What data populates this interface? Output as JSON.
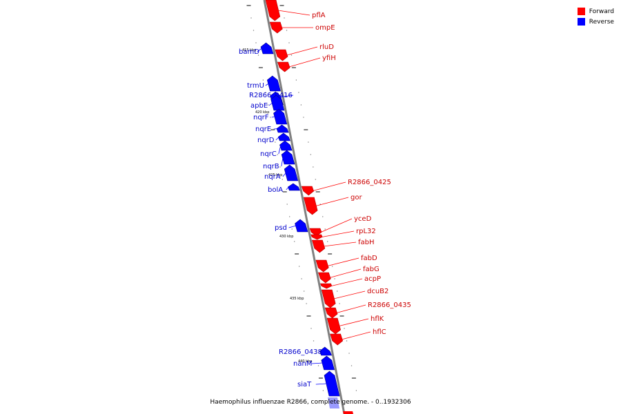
{
  "legend": {
    "forward_label": "Forward",
    "reverse_label": "Reverse",
    "forward_color": "#ff0000",
    "reverse_color": "#0000ff"
  },
  "caption": "Haemophilus influenzae R2866, complete genome. - 0..1932306",
  "kbp_labels": [
    "415 kbp",
    "420 kbp",
    "425 kbp",
    "430 kbp",
    "435 kbp",
    "440 kbp"
  ],
  "genes": [
    {
      "name": "pflA",
      "strand": "forward"
    },
    {
      "name": "ompE",
      "strand": "forward"
    },
    {
      "name": "bamD",
      "strand": "reverse"
    },
    {
      "name": "rluD",
      "strand": "forward"
    },
    {
      "name": "yfiH",
      "strand": "forward"
    },
    {
      "name": "trmU",
      "strand": "reverse"
    },
    {
      "name": "R2866_0416",
      "strand": "reverse"
    },
    {
      "name": "apbE",
      "strand": "reverse"
    },
    {
      "name": "nqrF",
      "strand": "reverse"
    },
    {
      "name": "nqrE",
      "strand": "reverse"
    },
    {
      "name": "nqrD",
      "strand": "reverse"
    },
    {
      "name": "nqrC",
      "strand": "reverse"
    },
    {
      "name": "nqrB",
      "strand": "reverse"
    },
    {
      "name": "nqrA",
      "strand": "reverse"
    },
    {
      "name": "bolA",
      "strand": "reverse"
    },
    {
      "name": "R2866_0425",
      "strand": "forward"
    },
    {
      "name": "gor",
      "strand": "forward"
    },
    {
      "name": "psd",
      "strand": "reverse"
    },
    {
      "name": "yceD",
      "strand": "forward"
    },
    {
      "name": "rpL32",
      "strand": "forward"
    },
    {
      "name": "fabH",
      "strand": "forward"
    },
    {
      "name": "fabD",
      "strand": "forward"
    },
    {
      "name": "fabG",
      "strand": "forward"
    },
    {
      "name": "acpP",
      "strand": "forward"
    },
    {
      "name": "dcuB2",
      "strand": "forward"
    },
    {
      "name": "R2866_0435",
      "strand": "forward"
    },
    {
      "name": "hflK",
      "strand": "forward"
    },
    {
      "name": "hflC",
      "strand": "forward"
    },
    {
      "name": "R2866_0438",
      "strand": "reverse"
    },
    {
      "name": "nanM",
      "strand": "reverse"
    },
    {
      "name": "siaT",
      "strand": "reverse"
    }
  ]
}
